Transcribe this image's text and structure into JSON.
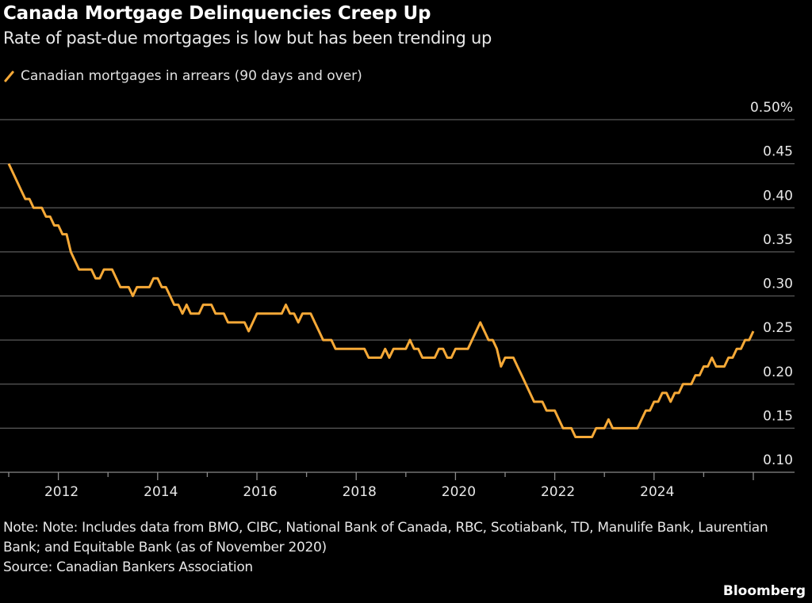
{
  "header": {
    "title": "Canada Mortgage Delinquencies Creep Up",
    "subtitle": "Rate of past-due mortgages is low but has been trending up"
  },
  "legend": {
    "label": "Canadian mortgages in arrears (90 days and over)",
    "icon": "diagonal-line-swatch"
  },
  "footer": {
    "note": "Note: Note: Includes data from BMO, CIBC, National Bank of Canada, RBC, Scotiabank, TD, Manulife Bank, Laurentian Bank; and Equitable Bank (as of November 2020)",
    "source": "Source: Canadian Bankers Association",
    "brand": "Bloomberg"
  },
  "colors": {
    "background": "#000000",
    "line": "#f6a937",
    "grid": "#5a5a5a",
    "text": "#ffffff"
  },
  "chart_data": {
    "type": "line",
    "title": "Canada Mortgage Delinquencies Creep Up",
    "subtitle": "Rate of past-due mortgages is low but has been trending up",
    "xlabel": "",
    "ylabel": "",
    "ylim": [
      0.1,
      0.5
    ],
    "yticks": [
      "0.10",
      "0.15",
      "0.20",
      "0.25",
      "0.30",
      "0.35",
      "0.40",
      "0.45",
      "0.50%"
    ],
    "ytick_values": [
      0.1,
      0.15,
      0.2,
      0.25,
      0.3,
      0.35,
      0.4,
      0.45,
      0.5
    ],
    "xticks": [
      "2012",
      "2014",
      "2016",
      "2018",
      "2020",
      "2022",
      "2024"
    ],
    "xlim": [
      "2011-01",
      "2026-01"
    ],
    "grid": true,
    "y_axis_side": "right",
    "legend_position": "top-left",
    "series": [
      {
        "name": "Canadian mortgages in arrears (90 days and over)",
        "x": [
          "2011-01",
          "2011-02",
          "2011-03",
          "2011-04",
          "2011-05",
          "2011-06",
          "2011-07",
          "2011-08",
          "2011-09",
          "2011-10",
          "2011-11",
          "2011-12",
          "2012-01",
          "2012-02",
          "2012-03",
          "2012-04",
          "2012-05",
          "2012-06",
          "2012-07",
          "2012-08",
          "2012-09",
          "2012-10",
          "2012-11",
          "2012-12",
          "2013-01",
          "2013-02",
          "2013-03",
          "2013-04",
          "2013-05",
          "2013-06",
          "2013-07",
          "2013-08",
          "2013-09",
          "2013-10",
          "2013-11",
          "2013-12",
          "2014-01",
          "2014-02",
          "2014-03",
          "2014-04",
          "2014-05",
          "2014-06",
          "2014-07",
          "2014-08",
          "2014-09",
          "2014-10",
          "2014-11",
          "2014-12",
          "2015-01",
          "2015-02",
          "2015-03",
          "2015-04",
          "2015-05",
          "2015-06",
          "2015-07",
          "2015-08",
          "2015-09",
          "2015-10",
          "2015-11",
          "2015-12",
          "2016-01",
          "2016-02",
          "2016-03",
          "2016-04",
          "2016-05",
          "2016-06",
          "2016-07",
          "2016-08",
          "2016-09",
          "2016-10",
          "2016-11",
          "2016-12",
          "2017-01",
          "2017-02",
          "2017-03",
          "2017-04",
          "2017-05",
          "2017-06",
          "2017-07",
          "2017-08",
          "2017-09",
          "2017-10",
          "2017-11",
          "2017-12",
          "2018-01",
          "2018-02",
          "2018-03",
          "2018-04",
          "2018-05",
          "2018-06",
          "2018-07",
          "2018-08",
          "2018-09",
          "2018-10",
          "2018-11",
          "2018-12",
          "2019-01",
          "2019-02",
          "2019-03",
          "2019-04",
          "2019-05",
          "2019-06",
          "2019-07",
          "2019-08",
          "2019-09",
          "2019-10",
          "2019-11",
          "2019-12",
          "2020-01",
          "2020-02",
          "2020-03",
          "2020-04",
          "2020-05",
          "2020-06",
          "2020-07",
          "2020-08",
          "2020-09",
          "2020-10",
          "2020-11",
          "2020-12",
          "2021-01",
          "2021-02",
          "2021-03",
          "2021-04",
          "2021-05",
          "2021-06",
          "2021-07",
          "2021-08",
          "2021-09",
          "2021-10",
          "2021-11",
          "2021-12",
          "2022-01",
          "2022-02",
          "2022-03",
          "2022-04",
          "2022-05",
          "2022-06",
          "2022-07",
          "2022-08",
          "2022-09",
          "2022-10",
          "2022-11",
          "2022-12",
          "2023-01",
          "2023-02",
          "2023-03",
          "2023-04",
          "2023-05",
          "2023-06",
          "2023-07",
          "2023-08",
          "2023-09",
          "2023-10",
          "2023-11",
          "2023-12",
          "2024-01",
          "2024-02",
          "2024-03",
          "2024-04",
          "2024-05",
          "2024-06",
          "2024-07",
          "2024-08",
          "2024-09",
          "2024-10",
          "2024-11",
          "2024-12",
          "2025-01",
          "2025-02",
          "2025-03",
          "2025-04",
          "2025-05",
          "2025-06",
          "2025-07",
          "2025-08",
          "2025-09",
          "2025-10",
          "2025-11",
          "2025-12",
          "2026-01"
        ],
        "values": [
          0.45,
          0.44,
          0.43,
          0.42,
          0.41,
          0.41,
          0.4,
          0.4,
          0.4,
          0.39,
          0.39,
          0.38,
          0.38,
          0.37,
          0.37,
          0.35,
          0.34,
          0.33,
          0.33,
          0.33,
          0.33,
          0.32,
          0.32,
          0.33,
          0.33,
          0.33,
          0.32,
          0.31,
          0.31,
          0.31,
          0.3,
          0.31,
          0.31,
          0.31,
          0.31,
          0.32,
          0.32,
          0.31,
          0.31,
          0.3,
          0.29,
          0.29,
          0.28,
          0.29,
          0.28,
          0.28,
          0.28,
          0.29,
          0.29,
          0.29,
          0.28,
          0.28,
          0.28,
          0.27,
          0.27,
          0.27,
          0.27,
          0.27,
          0.26,
          0.27,
          0.28,
          0.28,
          0.28,
          0.28,
          0.28,
          0.28,
          0.28,
          0.29,
          0.28,
          0.28,
          0.27,
          0.28,
          0.28,
          0.28,
          0.27,
          0.26,
          0.25,
          0.25,
          0.25,
          0.24,
          0.24,
          0.24,
          0.24,
          0.24,
          0.24,
          0.24,
          0.24,
          0.23,
          0.23,
          0.23,
          0.23,
          0.24,
          0.23,
          0.24,
          0.24,
          0.24,
          0.24,
          0.25,
          0.24,
          0.24,
          0.23,
          0.23,
          0.23,
          0.23,
          0.24,
          0.24,
          0.23,
          0.23,
          0.24,
          0.24,
          0.24,
          0.24,
          0.25,
          0.26,
          0.27,
          0.26,
          0.25,
          0.25,
          0.24,
          0.22,
          0.23,
          0.23,
          0.23,
          0.22,
          0.21,
          0.2,
          0.19,
          0.18,
          0.18,
          0.18,
          0.17,
          0.17,
          0.17,
          0.16,
          0.15,
          0.15,
          0.15,
          0.14,
          0.14,
          0.14,
          0.14,
          0.14,
          0.15,
          0.15,
          0.15,
          0.16,
          0.15,
          0.15,
          0.15,
          0.15,
          0.15,
          0.15,
          0.15,
          0.16,
          0.17,
          0.17,
          0.18,
          0.18,
          0.19,
          0.19,
          0.18,
          0.19,
          0.19,
          0.2,
          0.2,
          0.2,
          0.21,
          0.21,
          0.22,
          0.22,
          0.23,
          0.22,
          0.22,
          0.22,
          0.23,
          0.23,
          0.24,
          0.24,
          0.25,
          0.25,
          0.26
        ]
      }
    ]
  }
}
